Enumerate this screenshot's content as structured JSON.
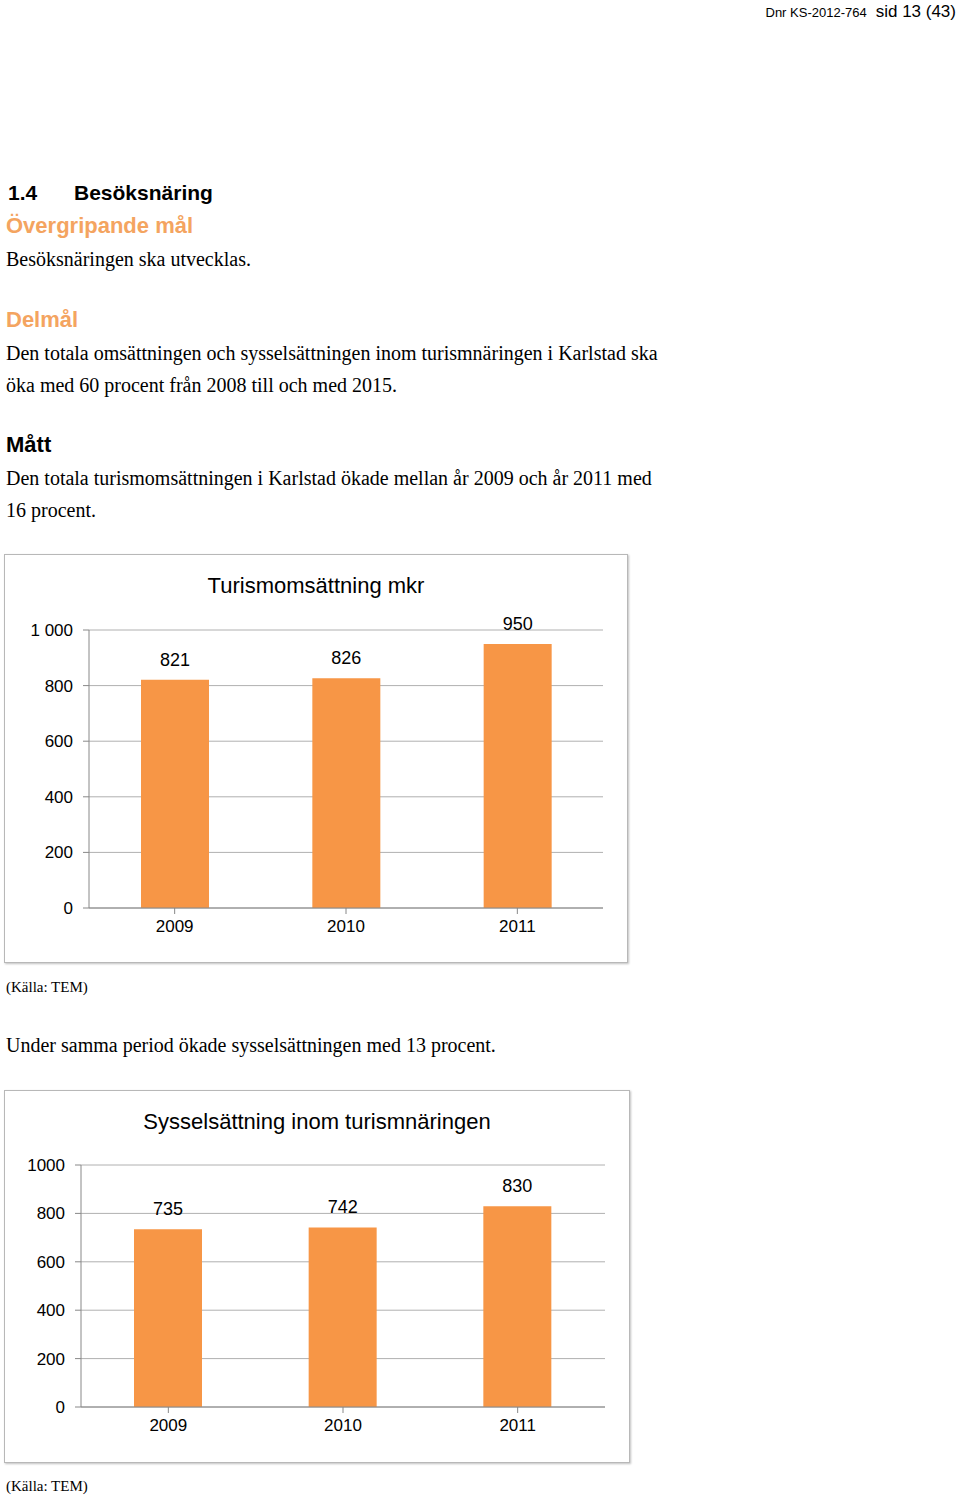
{
  "header": {
    "dnr": "Dnr KS-2012-764",
    "page": "sid 13 (43)"
  },
  "section": {
    "number": "1.4",
    "title": "Besöksnäring"
  },
  "blocks": [
    {
      "heading": "Övergripande mål",
      "style": "accent",
      "lines": [
        "Besöksnäringen ska utvecklas."
      ]
    },
    {
      "heading": "Delmål",
      "style": "accent",
      "lines": [
        "Den totala omsättningen och sysselsättningen inom turismnäringen i Karlstad ska",
        "öka med 60 procent från 2008 till och med 2015."
      ]
    },
    {
      "heading": "Mått",
      "style": "plain",
      "lines": [
        "Den totala turismomsättningen i Karlstad ökade mellan år 2009 och år 2011 med",
        "16 procent."
      ]
    }
  ],
  "chart_data": [
    {
      "type": "bar",
      "title": "Turismomsättning mkr",
      "categories": [
        "2009",
        "2010",
        "2011"
      ],
      "values": [
        821,
        826,
        950
      ],
      "color": "#f79646",
      "ylim": [
        0,
        1000
      ],
      "yticks": [
        0,
        200,
        400,
        600,
        800,
        {
          "value": 1000,
          "label": "1 000"
        }
      ],
      "grid": true,
      "data_labels": true
    },
    {
      "type": "bar",
      "title": "Sysselsättning inom turismnäringen",
      "categories": [
        "2009",
        "2010",
        "2011"
      ],
      "values": [
        735,
        742,
        830
      ],
      "color": "#f79646",
      "ylim": [
        0,
        1000
      ],
      "yticks": [
        0,
        200,
        400,
        600,
        800,
        1000
      ],
      "grid": true,
      "data_labels": true
    }
  ],
  "source_notes": [
    "(Källa: TEM)",
    "(Källa: TEM)"
  ],
  "interlude": "Under samma period ökade sysselsättningen med 13 procent."
}
